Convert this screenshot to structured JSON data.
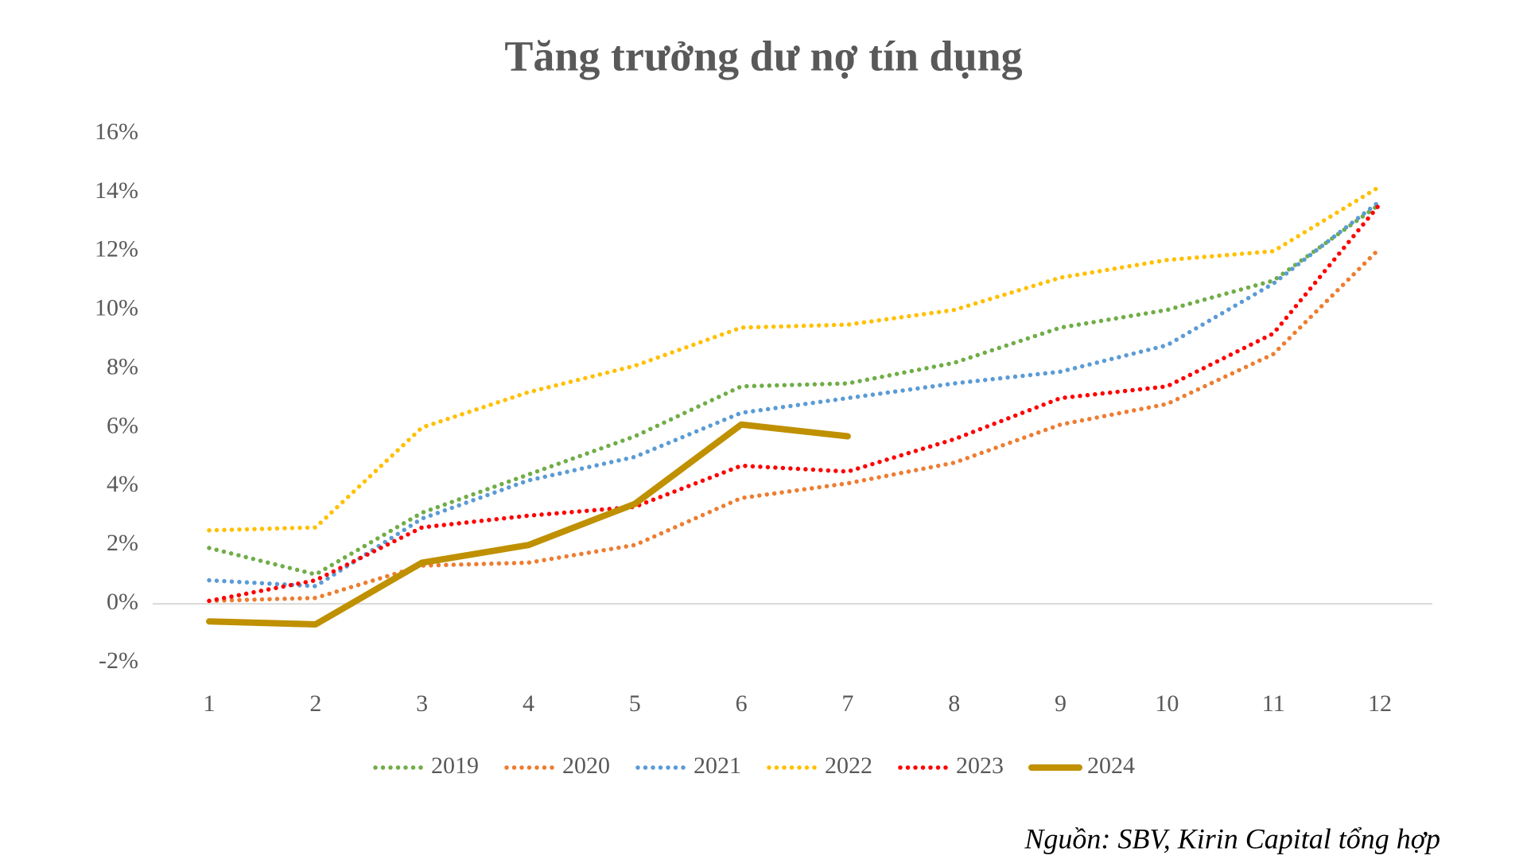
{
  "chart_data": {
    "type": "line",
    "title": "Tăng trưởng dư nợ tín dụng",
    "source": "Nguồn: SBV, Kirin Capital tổng hợp",
    "categories": [
      "1",
      "2",
      "3",
      "4",
      "5",
      "6",
      "7",
      "8",
      "9",
      "10",
      "11",
      "12"
    ],
    "series": [
      {
        "name": "2019",
        "color": "#70ad47",
        "style": "dotted",
        "values": [
          1.9,
          1.0,
          3.1,
          4.4,
          5.7,
          7.4,
          7.5,
          8.2,
          9.4,
          10.0,
          11.0,
          13.6
        ]
      },
      {
        "name": "2020",
        "color": "#ed7d31",
        "style": "dotted",
        "values": [
          0.1,
          0.2,
          1.3,
          1.4,
          2.0,
          3.6,
          4.1,
          4.8,
          6.1,
          6.8,
          8.5,
          12.1
        ]
      },
      {
        "name": "2021",
        "color": "#5b9bd5",
        "style": "dotted",
        "values": [
          0.8,
          0.6,
          2.9,
          4.2,
          5.0,
          6.5,
          7.0,
          7.5,
          7.9,
          8.8,
          10.9,
          13.7
        ]
      },
      {
        "name": "2022",
        "color": "#ffc000",
        "style": "dotted",
        "values": [
          2.5,
          2.6,
          6.0,
          7.2,
          8.1,
          9.4,
          9.5,
          10.0,
          11.1,
          11.7,
          12.0,
          14.2
        ]
      },
      {
        "name": "2023",
        "color": "#ff0000",
        "style": "dotted",
        "values": [
          0.1,
          0.8,
          2.6,
          3.0,
          3.3,
          4.7,
          4.5,
          5.6,
          7.0,
          7.4,
          9.2,
          13.6
        ]
      },
      {
        "name": "2024",
        "color": "#bf9000",
        "style": "solid",
        "values": [
          -0.6,
          -0.7,
          1.4,
          2.0,
          3.4,
          6.1,
          5.7,
          null,
          null,
          null,
          null,
          null
        ]
      }
    ],
    "ylim": [
      -2,
      16
    ],
    "yticks": [
      {
        "value": -2,
        "label": "-2%"
      },
      {
        "value": 0,
        "label": "0%"
      },
      {
        "value": 2,
        "label": "2%"
      },
      {
        "value": 4,
        "label": "4%"
      },
      {
        "value": 6,
        "label": "6%"
      },
      {
        "value": 8,
        "label": "8%"
      },
      {
        "value": 10,
        "label": "10%"
      },
      {
        "value": 12,
        "label": "12%"
      },
      {
        "value": 14,
        "label": "14%"
      },
      {
        "value": 16,
        "label": "16%"
      }
    ],
    "grid": false,
    "legend": "bottom"
  }
}
